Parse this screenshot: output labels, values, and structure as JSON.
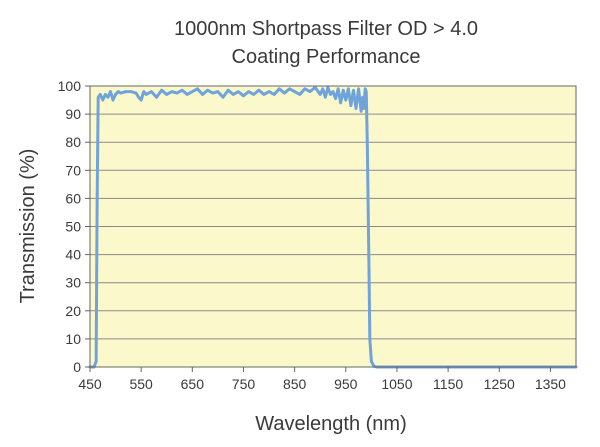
{
  "chart_data": {
    "type": "line",
    "title": "1000nm Shortpass Filter OD > 4.0",
    "subtitle": "Coating Performance",
    "xlabel": "Wavelength (nm)",
    "ylabel": "Transmission (%)",
    "xlim": [
      450,
      1400
    ],
    "ylim": [
      0,
      100
    ],
    "x_ticks": [
      450,
      550,
      650,
      750,
      850,
      950,
      1050,
      1150,
      1250,
      1350
    ],
    "y_ticks": [
      0,
      10,
      20,
      30,
      40,
      50,
      60,
      70,
      80,
      90,
      100
    ],
    "grid": "horizontal",
    "plot_background": "#fbf9cc",
    "grid_color": "#8a8a8a",
    "axis_color": "#666666",
    "series": [
      {
        "color": "#6fa3dc",
        "x": [
          450,
          458,
          462,
          464,
          466,
          470,
          475,
          480,
          485,
          490,
          495,
          500,
          505,
          510,
          520,
          530,
          540,
          545,
          550,
          555,
          560,
          570,
          580,
          590,
          600,
          610,
          620,
          630,
          640,
          650,
          660,
          670,
          680,
          690,
          700,
          710,
          720,
          730,
          740,
          750,
          760,
          770,
          780,
          790,
          800,
          810,
          820,
          830,
          840,
          850,
          860,
          870,
          880,
          890,
          900,
          905,
          910,
          915,
          920,
          925,
          930,
          935,
          940,
          945,
          950,
          955,
          960,
          965,
          970,
          975,
          980,
          983,
          985,
          988,
          990,
          992,
          995,
          997,
          1000,
          1005,
          1010,
          1020,
          1050,
          1100,
          1200,
          1300,
          1400
        ],
        "values": [
          0,
          0,
          2,
          60,
          96,
          97,
          95,
          97,
          96,
          98,
          95,
          97,
          98,
          97.5,
          98,
          98,
          97.5,
          96,
          95,
          98,
          97,
          98,
          96,
          98.5,
          97,
          98,
          97.5,
          98.5,
          97,
          98,
          99,
          97,
          98.5,
          97.5,
          98,
          96,
          98.5,
          97,
          98,
          96.5,
          98,
          97,
          98.5,
          97,
          98,
          97,
          99,
          97.5,
          99,
          98,
          97,
          99,
          98,
          99.5,
          97,
          99,
          96,
          99.5,
          97,
          98,
          95.5,
          99,
          94,
          98.5,
          95,
          99,
          93,
          98.5,
          92,
          99,
          91,
          96,
          92,
          99,
          98,
          80,
          40,
          10,
          2,
          0.3,
          0,
          0,
          0,
          0,
          0,
          0,
          0
        ]
      }
    ]
  }
}
